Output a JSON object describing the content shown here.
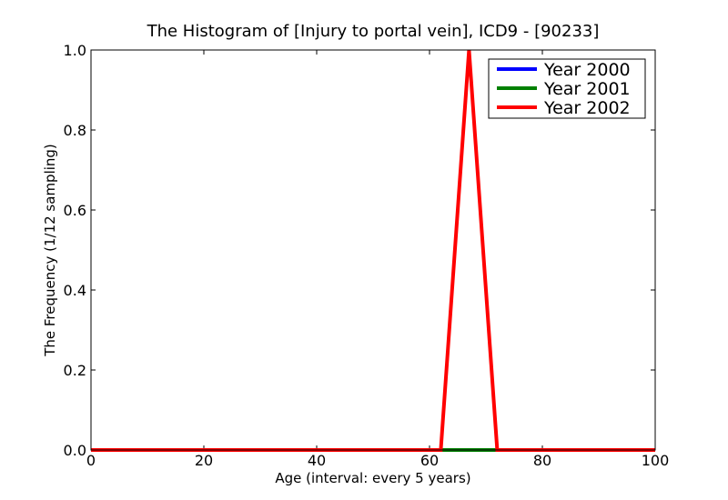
{
  "chart_data": {
    "type": "line",
    "title": "The Histogram of [Injury to portal vein], ICD9 - [90233]",
    "xlabel": "Age (interval: every 5 years)",
    "ylabel": "The Frequency (1/12 sampling)",
    "xlim": [
      0,
      100
    ],
    "ylim": [
      0,
      1.0
    ],
    "xticks": [
      "0",
      "20",
      "40",
      "60",
      "80",
      "100"
    ],
    "yticks": [
      "0.0",
      "0.2",
      "0.4",
      "0.6",
      "0.8",
      "1.0"
    ],
    "x": [
      0,
      5,
      10,
      15,
      20,
      25,
      30,
      35,
      40,
      45,
      50,
      55,
      60,
      62,
      67,
      72,
      75,
      80,
      85,
      90,
      95,
      100
    ],
    "series": [
      {
        "name": "Year 2000",
        "color": "#0000ff",
        "values": [
          0,
          0,
          0,
          0,
          0,
          0,
          0,
          0,
          0,
          0,
          0,
          0,
          0,
          0,
          0,
          0,
          0,
          0,
          0,
          0,
          0,
          0
        ]
      },
      {
        "name": "Year 2001",
        "color": "#008000",
        "values": [
          0,
          0,
          0,
          0,
          0,
          0,
          0,
          0,
          0,
          0,
          0,
          0,
          0,
          0,
          0,
          0,
          0,
          0,
          0,
          0,
          0,
          0
        ]
      },
      {
        "name": "Year 2002",
        "color": "#ff0000",
        "values": [
          0,
          0,
          0,
          0,
          0,
          0,
          0,
          0,
          0,
          0,
          0,
          0,
          0,
          0,
          1.0,
          0,
          0,
          0,
          0,
          0,
          0,
          0
        ]
      }
    ],
    "grid": false,
    "legend_position": "top-right"
  }
}
